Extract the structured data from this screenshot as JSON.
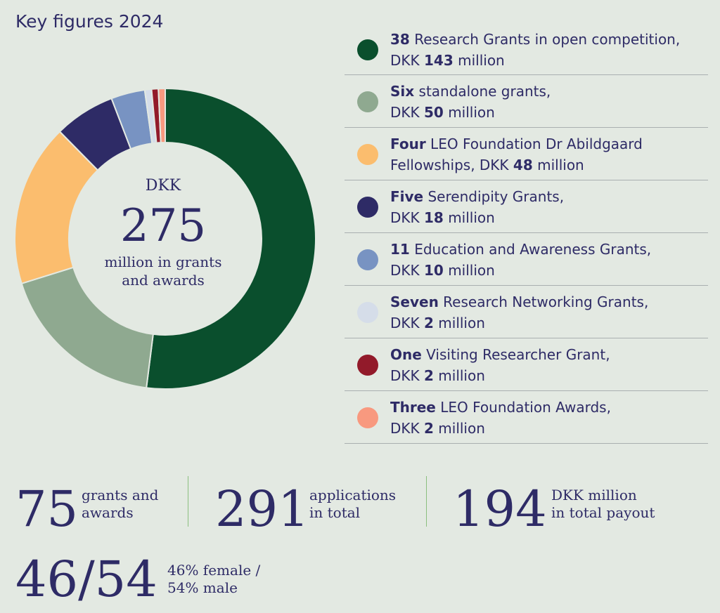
{
  "title": "Key figures 2024",
  "center": {
    "currency": "DKK",
    "total": "275",
    "line1": "million in grants",
    "line2": "and awards"
  },
  "legend": [
    {
      "bold": "38",
      "rest1": " Research Grants in open competition,",
      "line2a": "DKK ",
      "line2b": "143",
      "line2c": " million",
      "color": "#0a4f2d"
    },
    {
      "bold": "Six",
      "rest1": " standalone grants,",
      "line2a": "DKK ",
      "line2b": "50",
      "line2c": " million",
      "color": "#8fa990"
    },
    {
      "bold": "Four",
      "rest1": " LEO Foundation Dr Abildgaard",
      "line2a": "Fellowships, DKK ",
      "line2b": "48",
      "line2c": " million",
      "color": "#fbbd6e"
    },
    {
      "bold": "Five",
      "rest1": " Serendipity Grants,",
      "line2a": "DKK ",
      "line2b": "18",
      "line2c": " million",
      "color": "#2e2b66"
    },
    {
      "bold": "11",
      "rest1": " Education and Awareness Grants,",
      "line2a": "DKK ",
      "line2b": "10",
      "line2c": " million",
      "color": "#7893c2"
    },
    {
      "bold": "Seven",
      "rest1": " Research Networking Grants,",
      "line2a": "DKK ",
      "line2b": "2",
      "line2c": " million",
      "color": "#d5dde9"
    },
    {
      "bold": "One",
      "rest1": " Visiting Researcher Grant,",
      "line2a": "DKK ",
      "line2b": "2",
      "line2c": " million",
      "color": "#921a2a"
    },
    {
      "bold": "Three",
      "rest1": " LEO Foundation Awards,",
      "line2a": "DKK ",
      "line2b": "2",
      "line2c": " million",
      "color": "#f8997f"
    }
  ],
  "stats": {
    "grants": {
      "value": "75",
      "line1": "grants and",
      "line2": "awards"
    },
    "applications": {
      "value": "291",
      "line1": "applications",
      "line2": "in total"
    },
    "payout": {
      "value": "194",
      "line1": "DKK million",
      "line2": "in total payout"
    },
    "gender": {
      "value": "46/54",
      "line1": "46% female /",
      "line2": "54% male"
    }
  },
  "chart_data": {
    "type": "pie",
    "unit": "DKK million",
    "categories": [
      "Research Grants in open competition",
      "standalone grants",
      "LEO Foundation Dr Abildgaard Fellowships",
      "Serendipity Grants",
      "Education and Awareness Grants",
      "Research Networking Grants",
      "Visiting Researcher Grant",
      "LEO Foundation Awards"
    ],
    "values": [
      143,
      50,
      48,
      18,
      10,
      2,
      2,
      2
    ],
    "colors": [
      "#0a4f2d",
      "#8fa990",
      "#fbbd6e",
      "#2e2b66",
      "#7893c2",
      "#d5dde9",
      "#921a2a",
      "#f8997f"
    ],
    "legend_position": "right"
  }
}
